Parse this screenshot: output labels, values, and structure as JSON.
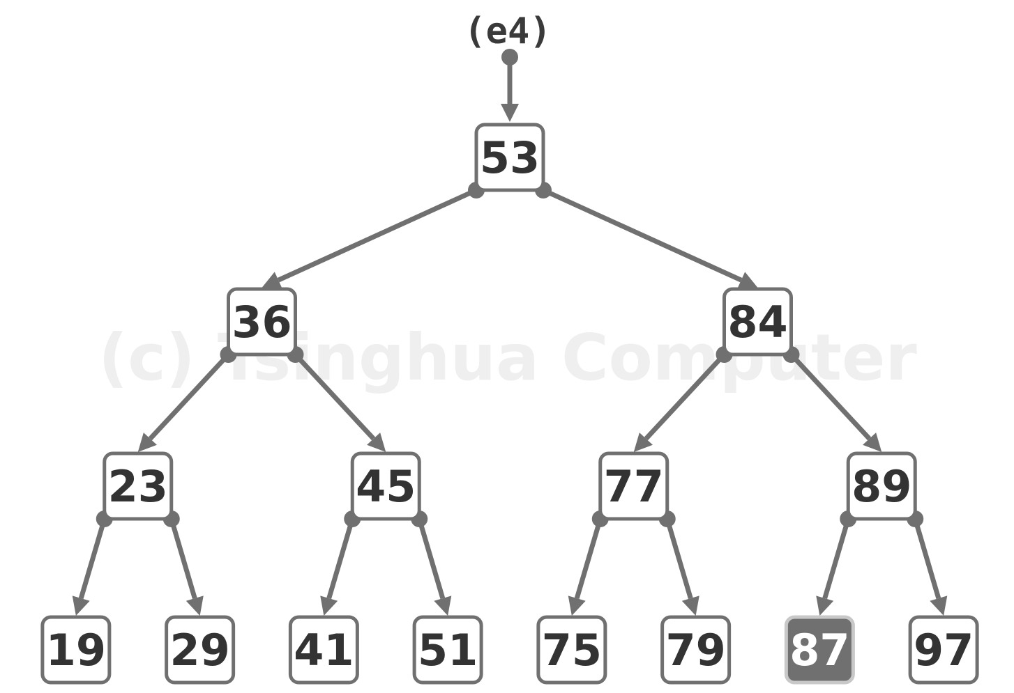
{
  "watermark": "(c) Tsinghua Computer",
  "entry_label": "(e4)",
  "colors": {
    "edge": "#707070",
    "node_text": "#333333",
    "highlight_fill": "#707070",
    "highlight_text": "#ffffff"
  },
  "tree": {
    "root": "53",
    "highlighted": "87",
    "nodes": [
      {
        "key": "53",
        "left": "36",
        "right": "84"
      },
      {
        "key": "36",
        "left": "23",
        "right": "45"
      },
      {
        "key": "84",
        "left": "77",
        "right": "89"
      },
      {
        "key": "23",
        "left": "19",
        "right": "29"
      },
      {
        "key": "45",
        "left": "41",
        "right": "51"
      },
      {
        "key": "77",
        "left": "75",
        "right": "79"
      },
      {
        "key": "89",
        "left": "87",
        "right": "97"
      },
      {
        "key": "19"
      },
      {
        "key": "29"
      },
      {
        "key": "41"
      },
      {
        "key": "51"
      },
      {
        "key": "75"
      },
      {
        "key": "79"
      },
      {
        "key": "87"
      },
      {
        "key": "97"
      }
    ]
  }
}
